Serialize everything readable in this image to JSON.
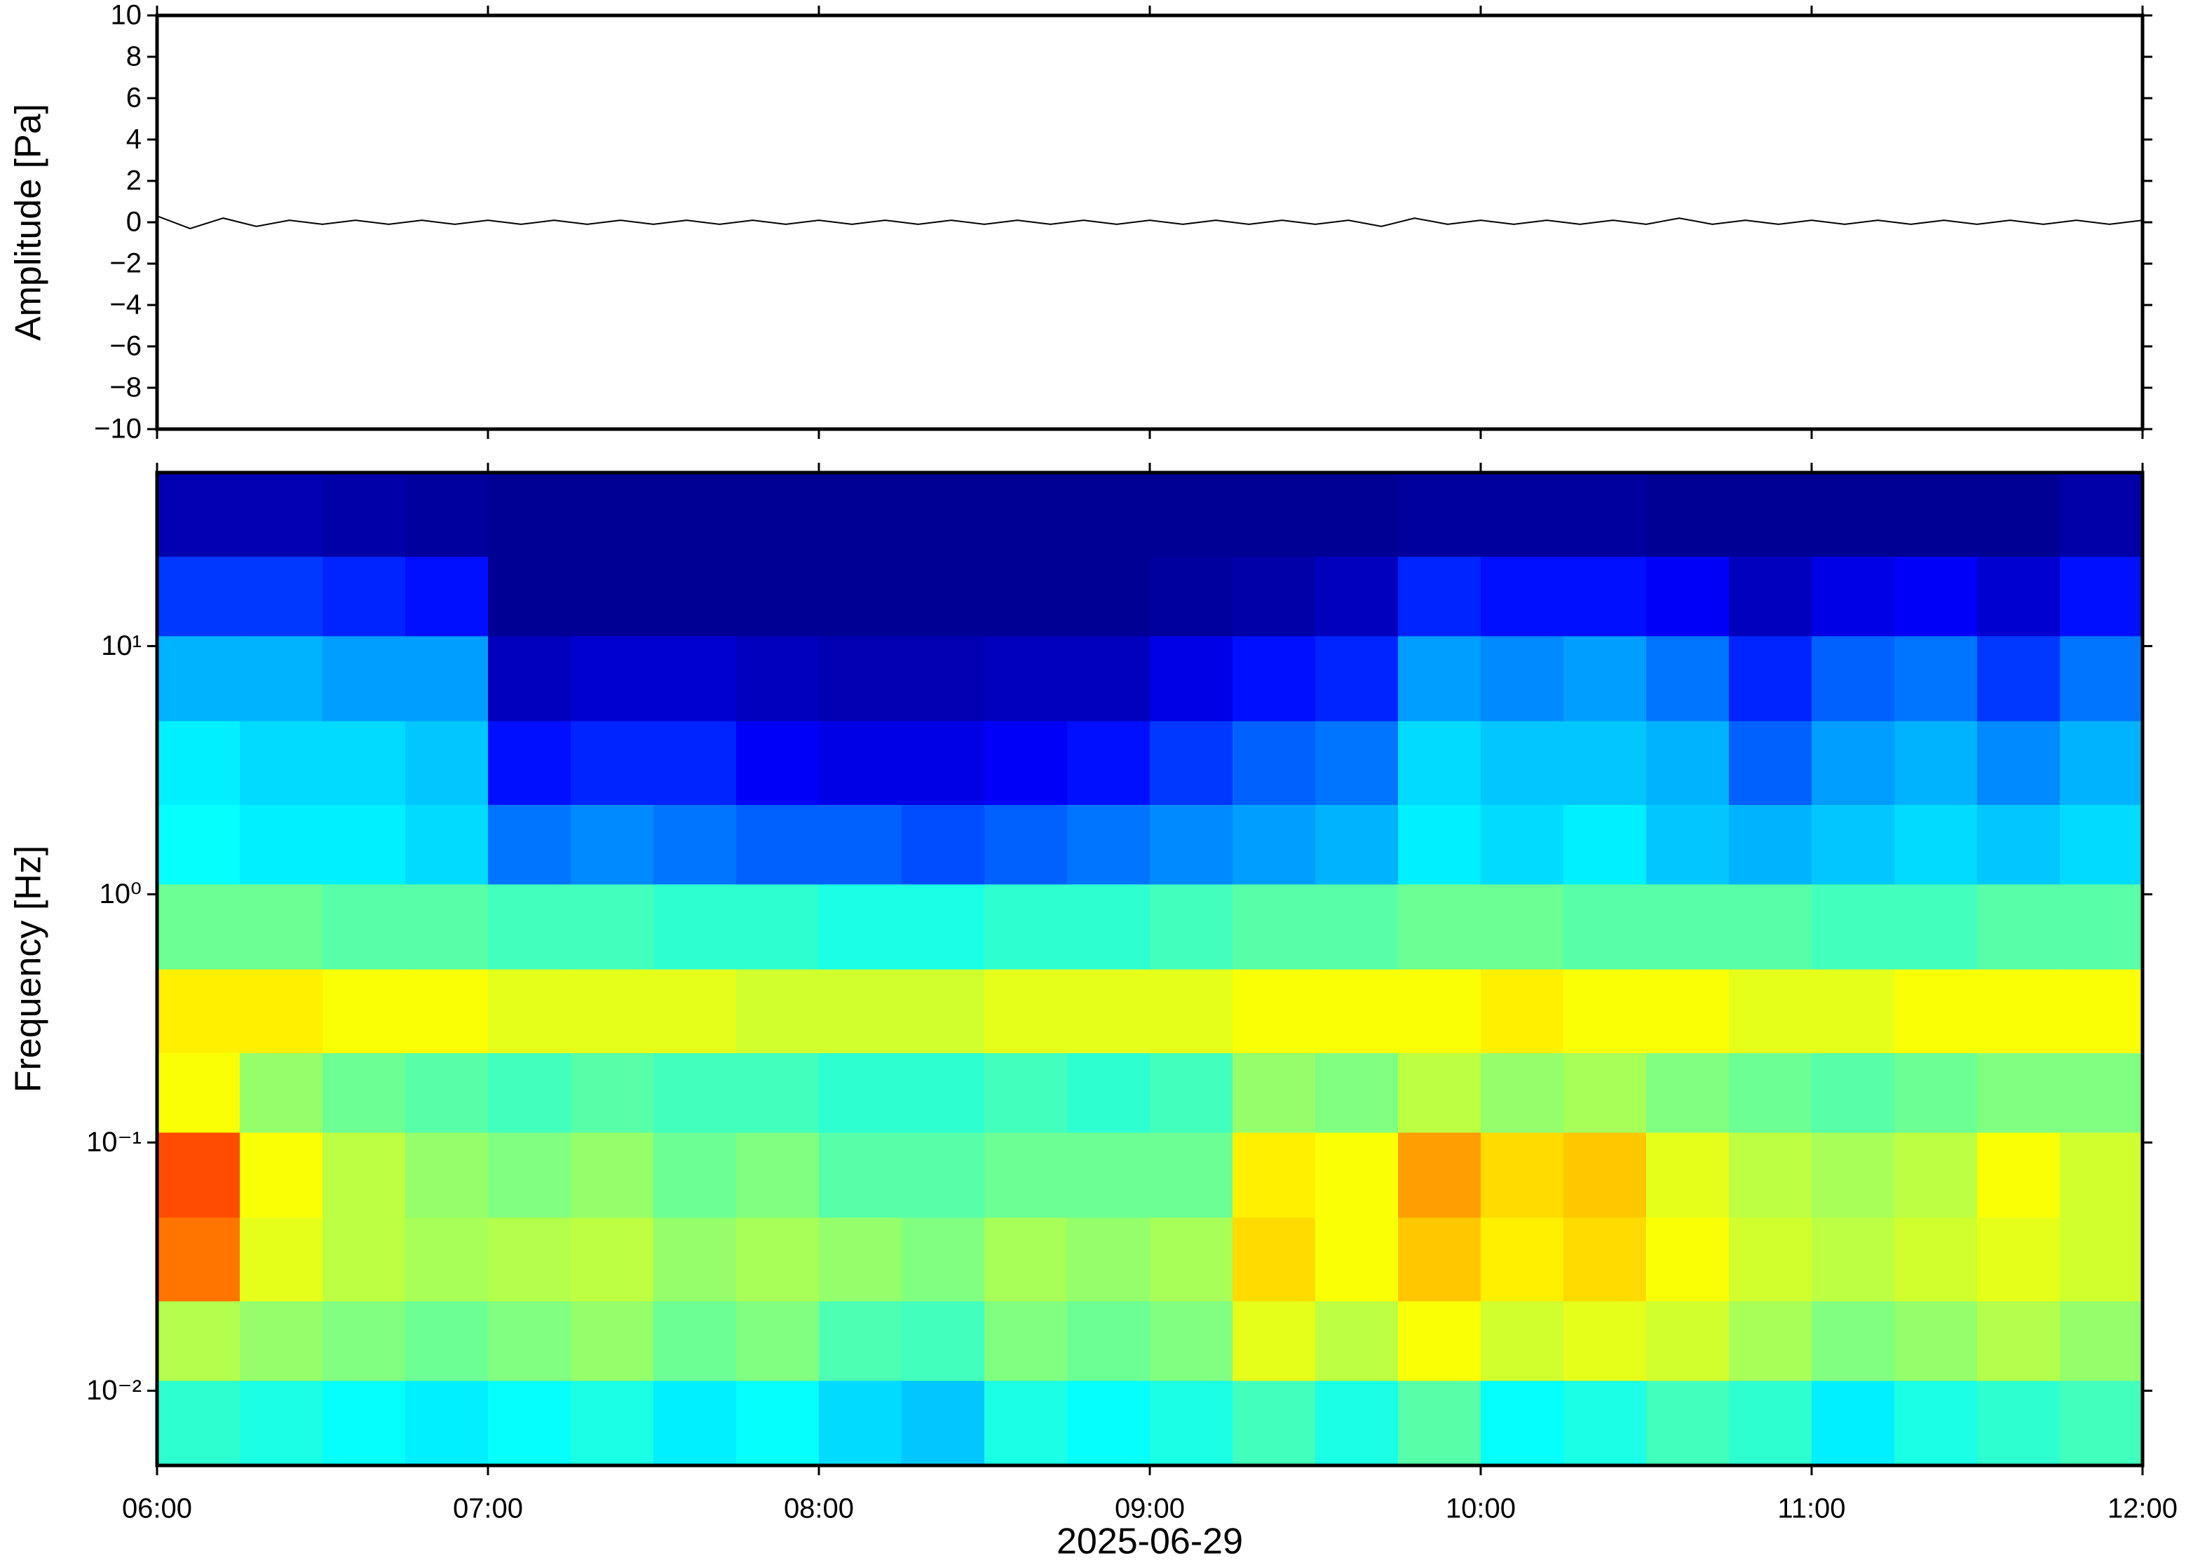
{
  "chart_data": [
    {
      "type": "line",
      "ylabel": "Amplitude [Pa]",
      "color": "#000000",
      "xlim": [
        6,
        12
      ],
      "xticks": [
        6,
        7,
        8,
        9,
        10,
        11,
        12
      ],
      "ylim": [
        -10,
        10
      ],
      "yticks": [
        {
          "value": -10,
          "label": "−10"
        },
        {
          "value": -8,
          "label": "−8"
        },
        {
          "value": -6,
          "label": "−6"
        },
        {
          "value": -4,
          "label": "−4"
        },
        {
          "value": -2,
          "label": "−2"
        },
        0,
        2,
        4,
        6,
        8,
        10
      ],
      "x": [
        6.0,
        6.1,
        6.2,
        6.3,
        6.4,
        6.5,
        6.6,
        6.7,
        6.8,
        6.9,
        7.0,
        7.1,
        7.2,
        7.3,
        7.4,
        7.5,
        7.6,
        7.7,
        7.8,
        7.9,
        8.0,
        8.1,
        8.2,
        8.3,
        8.4,
        8.5,
        8.6,
        8.7,
        8.8,
        8.9,
        9.0,
        9.1,
        9.2,
        9.3,
        9.4,
        9.5,
        9.6,
        9.7,
        9.8,
        9.9,
        10.0,
        10.1,
        10.2,
        10.3,
        10.4,
        10.5,
        10.6,
        10.7,
        10.8,
        10.9,
        11.0,
        11.1,
        11.2,
        11.3,
        11.4,
        11.5,
        11.6,
        11.7,
        11.8,
        11.9,
        12.0
      ],
      "values": [
        0.3,
        -0.3,
        0.2,
        -0.2,
        0.1,
        -0.1,
        0.1,
        -0.1,
        0.1,
        -0.1,
        0.1,
        -0.1,
        0.1,
        -0.1,
        0.1,
        -0.1,
        0.1,
        -0.1,
        0.1,
        -0.1,
        0.1,
        -0.1,
        0.1,
        -0.1,
        0.1,
        -0.1,
        0.1,
        -0.1,
        0.1,
        -0.1,
        0.1,
        -0.1,
        0.1,
        -0.1,
        0.1,
        -0.1,
        0.1,
        -0.2,
        0.2,
        -0.1,
        0.1,
        -0.1,
        0.1,
        -0.1,
        0.1,
        -0.1,
        0.2,
        -0.1,
        0.1,
        -0.1,
        0.1,
        -0.1,
        0.1,
        -0.1,
        0.1,
        -0.1,
        0.1,
        -0.1,
        0.1,
        -0.1,
        0.1
      ]
    },
    {
      "type": "heatmap",
      "ylabel": "Frequency [Hz]",
      "xlabel": "2025-06-29",
      "colormap": "jet",
      "zlim": [
        0,
        1
      ],
      "log_y": true,
      "xlim": [
        6,
        12
      ],
      "xticks": [
        {
          "value": 6,
          "label": "06:00"
        },
        {
          "value": 7,
          "label": "07:00"
        },
        {
          "value": 8,
          "label": "08:00"
        },
        {
          "value": 9,
          "label": "09:00"
        },
        {
          "value": 10,
          "label": "10:00"
        },
        {
          "value": 11,
          "label": "11:00"
        },
        {
          "value": 12,
          "label": "12:00"
        }
      ],
      "ylim": [
        0.005,
        50
      ],
      "yticks": [
        {
          "value": 0.01,
          "label": "10⁻²"
        },
        {
          "value": 0.1,
          "label": "10⁻¹"
        },
        {
          "value": 1,
          "label": "10⁰"
        },
        {
          "value": 10,
          "label": "10¹"
        }
      ],
      "x": [
        6,
        6.25,
        6.5,
        6.75,
        7,
        7.25,
        7.5,
        7.75,
        8,
        8.25,
        8.5,
        8.75,
        9,
        9.25,
        9.5,
        9.75,
        10,
        10.25,
        10.5,
        10.75,
        11,
        11.25,
        11.5,
        11.75,
        12
      ],
      "y": [
        0.005,
        0.011,
        0.023,
        0.05,
        0.11,
        0.23,
        0.5,
        1.1,
        2.3,
        5,
        11,
        23,
        50
      ],
      "values": [
        [
          0.42,
          0.4,
          0.38,
          0.36,
          0.38,
          0.4,
          0.36,
          0.38,
          0.34,
          0.32,
          0.4,
          0.38,
          0.4,
          0.44,
          0.4,
          0.46,
          0.38,
          0.4,
          0.44,
          0.42,
          0.36,
          0.4,
          0.42,
          0.44
        ],
        [
          0.55,
          0.52,
          0.5,
          0.48,
          0.5,
          0.52,
          0.48,
          0.5,
          0.45,
          0.44,
          0.5,
          0.48,
          0.5,
          0.6,
          0.56,
          0.62,
          0.58,
          0.6,
          0.58,
          0.54,
          0.5,
          0.52,
          0.55,
          0.52
        ],
        [
          0.76,
          0.6,
          0.56,
          0.54,
          0.55,
          0.56,
          0.52,
          0.54,
          0.52,
          0.5,
          0.54,
          0.52,
          0.54,
          0.66,
          0.62,
          0.68,
          0.64,
          0.66,
          0.62,
          0.58,
          0.56,
          0.58,
          0.6,
          0.58
        ],
        [
          0.8,
          0.62,
          0.56,
          0.52,
          0.5,
          0.52,
          0.48,
          0.5,
          0.46,
          0.46,
          0.48,
          0.48,
          0.48,
          0.64,
          0.62,
          0.72,
          0.66,
          0.68,
          0.6,
          0.56,
          0.54,
          0.56,
          0.62,
          0.58
        ],
        [
          0.62,
          0.52,
          0.48,
          0.46,
          0.44,
          0.46,
          0.44,
          0.44,
          0.42,
          0.42,
          0.44,
          0.42,
          0.44,
          0.52,
          0.5,
          0.56,
          0.52,
          0.54,
          0.5,
          0.48,
          0.46,
          0.48,
          0.5,
          0.5
        ],
        [
          0.64,
          0.64,
          0.62,
          0.62,
          0.6,
          0.6,
          0.6,
          0.58,
          0.58,
          0.58,
          0.6,
          0.6,
          0.6,
          0.62,
          0.62,
          0.62,
          0.64,
          0.62,
          0.62,
          0.6,
          0.6,
          0.62,
          0.62,
          0.62
        ],
        [
          0.48,
          0.48,
          0.46,
          0.46,
          0.44,
          0.44,
          0.42,
          0.42,
          0.4,
          0.4,
          0.42,
          0.42,
          0.44,
          0.46,
          0.46,
          0.48,
          0.48,
          0.46,
          0.46,
          0.46,
          0.44,
          0.44,
          0.46,
          0.46
        ],
        [
          0.38,
          0.36,
          0.36,
          0.34,
          0.24,
          0.26,
          0.24,
          0.22,
          0.22,
          0.2,
          0.22,
          0.24,
          0.26,
          0.28,
          0.3,
          0.36,
          0.34,
          0.36,
          0.32,
          0.3,
          0.32,
          0.34,
          0.32,
          0.34
        ],
        [
          0.36,
          0.34,
          0.34,
          0.32,
          0.14,
          0.16,
          0.16,
          0.12,
          0.1,
          0.1,
          0.12,
          0.14,
          0.18,
          0.22,
          0.24,
          0.34,
          0.32,
          0.32,
          0.3,
          0.22,
          0.28,
          0.3,
          0.26,
          0.3
        ],
        [
          0.3,
          0.3,
          0.28,
          0.28,
          0.06,
          0.08,
          0.08,
          0.06,
          0.05,
          0.05,
          0.06,
          0.06,
          0.1,
          0.14,
          0.16,
          0.28,
          0.26,
          0.28,
          0.24,
          0.16,
          0.22,
          0.24,
          0.18,
          0.24
        ],
        [
          0.18,
          0.18,
          0.16,
          0.14,
          0.02,
          0.02,
          0.02,
          0.02,
          0.02,
          0.02,
          0.02,
          0.02,
          0.03,
          0.04,
          0.06,
          0.16,
          0.14,
          0.14,
          0.12,
          0.06,
          0.1,
          0.12,
          0.08,
          0.14
        ],
        [
          0.05,
          0.05,
          0.04,
          0.03,
          0.02,
          0.02,
          0.02,
          0.02,
          0.02,
          0.02,
          0.02,
          0.02,
          0.02,
          0.02,
          0.02,
          0.03,
          0.03,
          0.03,
          0.02,
          0.02,
          0.02,
          0.02,
          0.02,
          0.04
        ]
      ]
    }
  ]
}
